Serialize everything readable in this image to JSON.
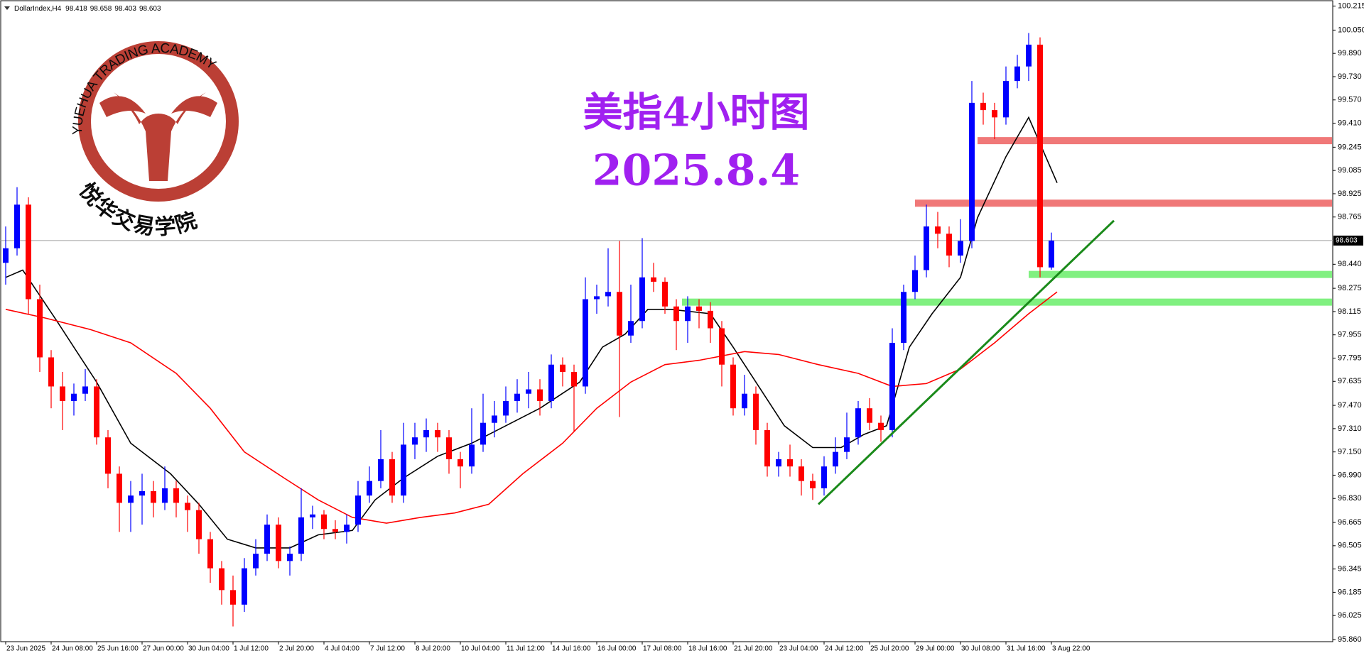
{
  "chart_data": {
    "type": "candlestick",
    "symbol": "DollarIndex,H4",
    "title": "美指4小时图",
    "subtitle": "2025.8.4",
    "watermark_text": "YUEHUA TRADING ACADEMY",
    "watermark_cn": "悦华交易学院",
    "up_color": "#0000ff",
    "down_color": "#ff0000",
    "xlim": [
      -1,
      233.5
    ],
    "ylim": [
      95.86,
      100.215
    ],
    "yticks": [
      {
        "value": 100.215,
        "label": "100.215"
      },
      {
        "value": 100.05,
        "label": "100.050"
      },
      {
        "value": 99.89,
        "label": "99.890"
      },
      {
        "value": 99.73,
        "label": "99.730"
      },
      {
        "value": 99.57,
        "label": "99.570"
      },
      {
        "value": 99.41,
        "label": "99.410"
      },
      {
        "value": 99.245,
        "label": "99.245"
      },
      {
        "value": 99.085,
        "label": "99.085"
      },
      {
        "value": 98.925,
        "label": "98.925"
      },
      {
        "value": 98.765,
        "label": "98.765"
      },
      {
        "value": 98.44,
        "label": "98.440"
      },
      {
        "value": 98.275,
        "label": "98.275"
      },
      {
        "value": 98.115,
        "label": "98.115"
      },
      {
        "value": 97.955,
        "label": "97.955"
      },
      {
        "value": 97.795,
        "label": "97.795"
      },
      {
        "value": 97.635,
        "label": "97.635"
      },
      {
        "value": 97.47,
        "label": "97.470"
      },
      {
        "value": 97.31,
        "label": "97.310"
      },
      {
        "value": 97.15,
        "label": "97.150"
      },
      {
        "value": 96.99,
        "label": "96.990"
      },
      {
        "value": 96.83,
        "label": "96.830"
      },
      {
        "value": 96.665,
        "label": "96.665"
      },
      {
        "value": 96.505,
        "label": "96.505"
      },
      {
        "value": 96.345,
        "label": "96.345"
      },
      {
        "value": 96.185,
        "label": "96.185"
      },
      {
        "value": 96.025,
        "label": "96.025"
      },
      {
        "value": 95.86,
        "label": "95.860"
      }
    ],
    "xticks": [
      {
        "value": 0,
        "label": "23 Jun 2025"
      },
      {
        "value": 8,
        "label": "24 Jun 08:00"
      },
      {
        "value": 16,
        "label": "25 Jun 16:00"
      },
      {
        "value": 24,
        "label": "27 Jun 00:00"
      },
      {
        "value": 32,
        "label": "30 Jun 04:00"
      },
      {
        "value": 40,
        "label": "1 Jul 12:00"
      },
      {
        "value": 48,
        "label": "2 Jul 20:00"
      },
      {
        "value": 56,
        "label": "4 Jul 04:00"
      },
      {
        "value": 64,
        "label": "7 Jul 12:00"
      },
      {
        "value": 72,
        "label": "8 Jul 20:00"
      },
      {
        "value": 80,
        "label": "10 Jul 04:00"
      },
      {
        "value": 88,
        "label": "11 Jul 12:00"
      },
      {
        "value": 96,
        "label": "14 Jul 16:00"
      },
      {
        "value": 104,
        "label": "16 Jul 00:00"
      },
      {
        "value": 112,
        "label": "17 Jul 08:00"
      },
      {
        "value": 120,
        "label": "18 Jul 16:00"
      },
      {
        "value": 128,
        "label": "21 Jul 20:00"
      },
      {
        "value": 136,
        "label": "23 Jul 04:00"
      },
      {
        "value": 144,
        "label": "24 Jul 12:00"
      },
      {
        "value": 152,
        "label": "25 Jul 20:00"
      },
      {
        "value": 160,
        "label": "29 Jul 00:00"
      },
      {
        "value": 168,
        "label": "30 Jul 08:00"
      },
      {
        "value": 176,
        "label": "31 Jul 16:00"
      },
      {
        "value": 184,
        "label": "3 Aug 22:00"
      }
    ],
    "x": [
      0,
      2,
      4,
      6,
      8,
      10,
      12,
      14,
      16,
      18,
      20,
      22,
      24,
      26,
      28,
      30,
      32,
      34,
      36,
      38,
      40,
      42,
      44,
      46,
      48,
      50,
      52,
      54,
      56,
      58,
      60,
      62,
      64,
      66,
      68,
      70,
      72,
      74,
      76,
      78,
      80,
      82,
      84,
      86,
      88,
      90,
      92,
      94,
      96,
      98,
      100,
      102,
      104,
      106,
      108,
      110,
      112,
      114,
      116,
      118,
      120,
      122,
      124,
      126,
      128,
      130,
      132,
      134,
      136,
      138,
      140,
      142,
      144,
      146,
      148,
      150,
      152,
      154,
      156,
      158,
      160,
      162,
      164,
      166,
      168,
      170,
      172,
      174,
      176,
      178,
      180,
      182,
      184
    ],
    "ohlc": [
      [
        98.45,
        98.7,
        98.3,
        98.55
      ],
      [
        98.55,
        98.97,
        98.5,
        98.85
      ],
      [
        98.85,
        98.9,
        98.1,
        98.2
      ],
      [
        98.2,
        98.3,
        97.7,
        97.8
      ],
      [
        97.8,
        97.85,
        97.45,
        97.6
      ],
      [
        97.6,
        97.7,
        97.3,
        97.5
      ],
      [
        97.5,
        97.62,
        97.4,
        97.55
      ],
      [
        97.55,
        97.72,
        97.5,
        97.6
      ],
      [
        97.6,
        97.65,
        97.2,
        97.25
      ],
      [
        97.25,
        97.3,
        96.9,
        97.0
      ],
      [
        97.0,
        97.05,
        96.6,
        96.8
      ],
      [
        96.8,
        96.95,
        96.6,
        96.85
      ],
      [
        96.85,
        97.0,
        96.65,
        96.88
      ],
      [
        96.88,
        96.95,
        96.7,
        96.8
      ],
      [
        96.8,
        97.05,
        96.75,
        96.9
      ],
      [
        96.9,
        96.95,
        96.7,
        96.8
      ],
      [
        96.8,
        96.85,
        96.6,
        96.75
      ],
      [
        96.75,
        96.8,
        96.45,
        96.55
      ],
      [
        96.55,
        96.6,
        96.25,
        96.35
      ],
      [
        96.35,
        96.4,
        96.1,
        96.2
      ],
      [
        96.2,
        96.3,
        95.95,
        96.1
      ],
      [
        96.1,
        96.42,
        96.05,
        96.35
      ],
      [
        96.35,
        96.55,
        96.3,
        96.45
      ],
      [
        96.45,
        96.72,
        96.4,
        96.65
      ],
      [
        96.65,
        96.7,
        96.35,
        96.4
      ],
      [
        96.4,
        96.5,
        96.3,
        96.45
      ],
      [
        96.45,
        96.9,
        96.4,
        96.7
      ],
      [
        96.7,
        96.78,
        96.62,
        96.72
      ],
      [
        96.72,
        96.75,
        96.55,
        96.62
      ],
      [
        96.62,
        96.68,
        96.55,
        96.6
      ],
      [
        96.6,
        96.72,
        96.52,
        96.65
      ],
      [
        96.65,
        96.95,
        96.6,
        96.85
      ],
      [
        96.85,
        97.05,
        96.8,
        96.95
      ],
      [
        96.95,
        97.3,
        96.9,
        97.1
      ],
      [
        97.1,
        97.15,
        96.8,
        96.85
      ],
      [
        96.85,
        97.35,
        96.8,
        97.2
      ],
      [
        97.2,
        97.35,
        97.1,
        97.25
      ],
      [
        97.25,
        97.38,
        97.15,
        97.3
      ],
      [
        97.3,
        97.35,
        97.15,
        97.25
      ],
      [
        97.25,
        97.3,
        97.0,
        97.1
      ],
      [
        97.1,
        97.15,
        96.9,
        97.05
      ],
      [
        97.05,
        97.45,
        97.0,
        97.2
      ],
      [
        97.2,
        97.55,
        97.15,
        97.35
      ],
      [
        97.35,
        97.5,
        97.25,
        97.4
      ],
      [
        97.4,
        97.6,
        97.35,
        97.5
      ],
      [
        97.5,
        97.65,
        97.42,
        97.55
      ],
      [
        97.55,
        97.7,
        97.45,
        97.58
      ],
      [
        97.58,
        97.65,
        97.4,
        97.5
      ],
      [
        97.5,
        97.82,
        97.45,
        97.75
      ],
      [
        97.75,
        97.8,
        97.6,
        97.7
      ],
      [
        97.7,
        97.75,
        97.29,
        97.6
      ],
      [
        97.6,
        98.35,
        97.55,
        98.2
      ],
      [
        98.2,
        98.3,
        98.1,
        98.22
      ],
      [
        98.22,
        98.55,
        98.15,
        98.25
      ],
      [
        98.25,
        98.6,
        97.39,
        97.95
      ],
      [
        97.95,
        98.3,
        97.9,
        98.05
      ],
      [
        98.05,
        98.62,
        98.0,
        98.35
      ],
      [
        98.35,
        98.45,
        98.25,
        98.32
      ],
      [
        98.32,
        98.35,
        98.1,
        98.15
      ],
      [
        98.15,
        98.2,
        97.85,
        98.05
      ],
      [
        98.05,
        98.22,
        97.9,
        98.15
      ],
      [
        98.15,
        98.2,
        98.0,
        98.12
      ],
      [
        98.12,
        98.18,
        97.9,
        98.0
      ],
      [
        98.0,
        98.05,
        97.6,
        97.75
      ],
      [
        97.75,
        97.8,
        97.4,
        97.45
      ],
      [
        97.45,
        97.68,
        97.4,
        97.55
      ],
      [
        97.55,
        97.6,
        97.2,
        97.3
      ],
      [
        97.3,
        97.35,
        96.98,
        97.05
      ],
      [
        97.05,
        97.15,
        96.98,
        97.1
      ],
      [
        97.1,
        97.2,
        96.98,
        97.05
      ],
      [
        97.05,
        97.1,
        96.85,
        96.95
      ],
      [
        96.95,
        97.0,
        96.82,
        96.9
      ],
      [
        96.9,
        97.12,
        96.85,
        97.05
      ],
      [
        97.05,
        97.25,
        97.0,
        97.15
      ],
      [
        97.15,
        97.42,
        97.1,
        97.25
      ],
      [
        97.25,
        97.5,
        97.2,
        97.45
      ],
      [
        97.45,
        97.52,
        97.3,
        97.35
      ],
      [
        97.35,
        97.4,
        97.22,
        97.3
      ],
      [
        97.3,
        98.0,
        97.25,
        97.9
      ],
      [
        97.9,
        98.3,
        97.85,
        98.25
      ],
      [
        98.25,
        98.5,
        98.2,
        98.4
      ],
      [
        98.4,
        98.85,
        98.35,
        98.7
      ],
      [
        98.7,
        98.8,
        98.55,
        98.65
      ],
      [
        98.65,
        98.7,
        98.42,
        98.5
      ],
      [
        98.5,
        98.75,
        98.45,
        98.6
      ],
      [
        98.6,
        99.7,
        98.55,
        99.55
      ],
      [
        99.55,
        99.62,
        99.4,
        99.5
      ],
      [
        99.5,
        99.55,
        99.3,
        99.45
      ],
      [
        99.45,
        99.8,
        99.4,
        99.7
      ],
      [
        99.7,
        99.88,
        99.65,
        99.8
      ],
      [
        99.8,
        100.03,
        99.7,
        99.95
      ],
      [
        99.95,
        100.0,
        98.35,
        98.42
      ],
      [
        98.418,
        98.658,
        98.403,
        98.603
      ]
    ],
    "lines": [
      {
        "color": "#000000",
        "x": [
          0,
          3,
          9,
          13,
          16,
          22,
          29,
          34,
          39,
          44,
          50,
          55,
          61,
          65,
          70,
          76,
          82,
          88,
          94,
          101,
          105,
          109,
          113,
          117,
          124,
          128,
          133,
          137,
          142,
          147,
          151,
          155,
          159,
          163,
          168,
          171,
          176,
          180,
          183,
          185
        ],
        "values": [
          98.35,
          98.4,
          98.05,
          97.81,
          97.63,
          97.21,
          97.0,
          96.79,
          96.55,
          96.49,
          96.49,
          96.58,
          96.61,
          96.82,
          96.97,
          97.12,
          97.21,
          97.33,
          97.45,
          97.63,
          97.87,
          97.96,
          98.13,
          98.13,
          98.1,
          97.87,
          97.57,
          97.33,
          97.18,
          97.18,
          97.27,
          97.33,
          97.87,
          98.1,
          98.35,
          98.76,
          99.18,
          99.45,
          99.18,
          99.0
        ]
      },
      {
        "color": "#ff0000",
        "x": [
          0,
          7,
          15,
          22,
          30,
          36,
          42,
          49,
          55,
          61,
          67,
          73,
          79,
          85,
          91,
          98,
          104,
          110,
          116,
          122,
          130,
          136,
          143,
          150,
          156,
          162,
          168,
          174,
          180,
          185
        ],
        "values": [
          98.13,
          98.07,
          97.99,
          97.9,
          97.69,
          97.45,
          97.15,
          96.97,
          96.82,
          96.7,
          96.66,
          96.7,
          96.73,
          96.79,
          97.0,
          97.21,
          97.45,
          97.63,
          97.75,
          97.78,
          97.84,
          97.82,
          97.75,
          97.69,
          97.6,
          97.62,
          97.72,
          97.9,
          98.1,
          98.25
        ]
      }
    ],
    "zones": [
      {
        "value": 99.29,
        "from": 171,
        "color": "#f07878"
      },
      {
        "value": 98.86,
        "from": 160,
        "color": "#f07878"
      },
      {
        "value": 98.37,
        "from": 180,
        "color": "#80f080"
      },
      {
        "value": 98.18,
        "from": 119,
        "color": "#80f080"
      }
    ],
    "trendline": {
      "color": "#1a8a1a",
      "x": [
        143,
        195
      ],
      "values": [
        96.79,
        98.74
      ]
    }
  }
}
